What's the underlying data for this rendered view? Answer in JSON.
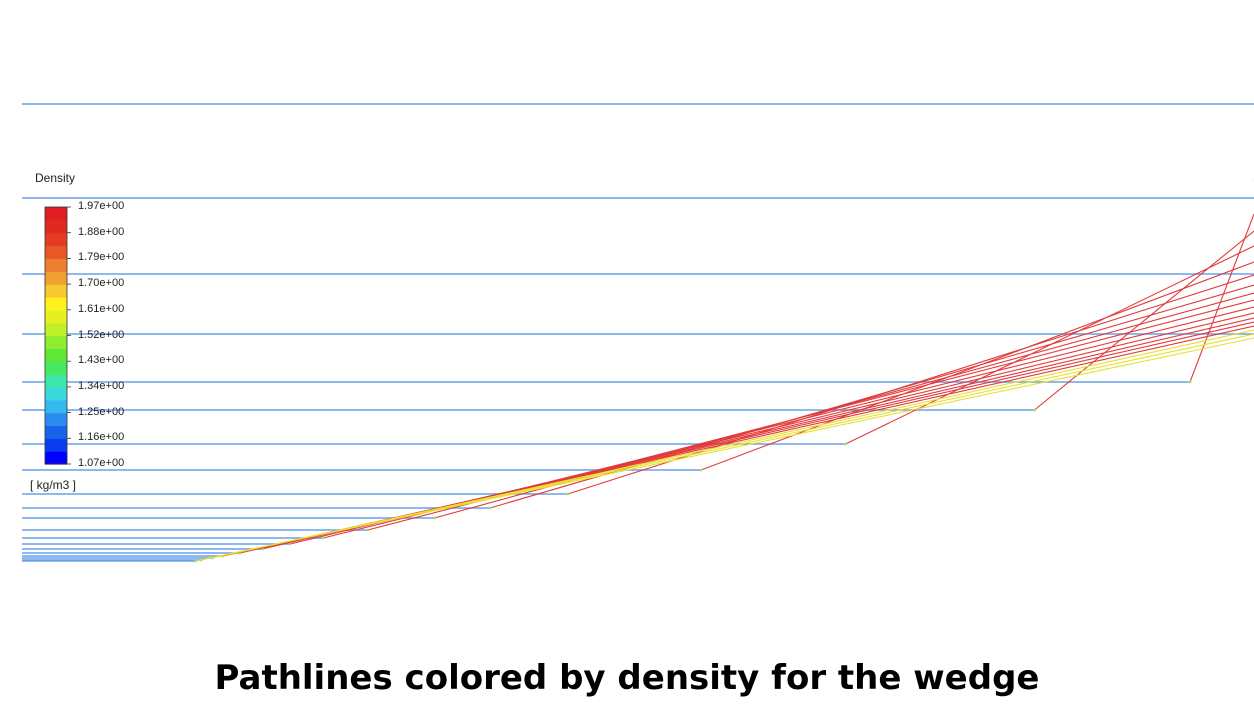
{
  "caption": "Pathlines colored by density for the wedge",
  "legend": {
    "title": "Density",
    "units": "[ kg/m3 ]",
    "ticks": [
      "1.97e+00",
      "1.88e+00",
      "1.79e+00",
      "1.70e+00",
      "1.61e+00",
      "1.52e+00",
      "1.43e+00",
      "1.34e+00",
      "1.25e+00",
      "1.16e+00",
      "1.07e+00"
    ],
    "colors": [
      "#0000ff",
      "#0a3cf0",
      "#1764ea",
      "#2a8cf0",
      "#35b8f0",
      "#3cd8e0",
      "#3ce8a8",
      "#48e860",
      "#60e838",
      "#90ec30",
      "#c0f028",
      "#e6f020",
      "#fff020",
      "#f8c830",
      "#f0a030",
      "#ec7f30",
      "#e85828",
      "#e43c24",
      "#e02a20",
      "#e02020"
    ]
  },
  "colors": {
    "freestream": "#6aa0e8",
    "post_shock": "#e23a3a",
    "near_wall": "#e8e030",
    "transition": "#9ee060"
  }
}
